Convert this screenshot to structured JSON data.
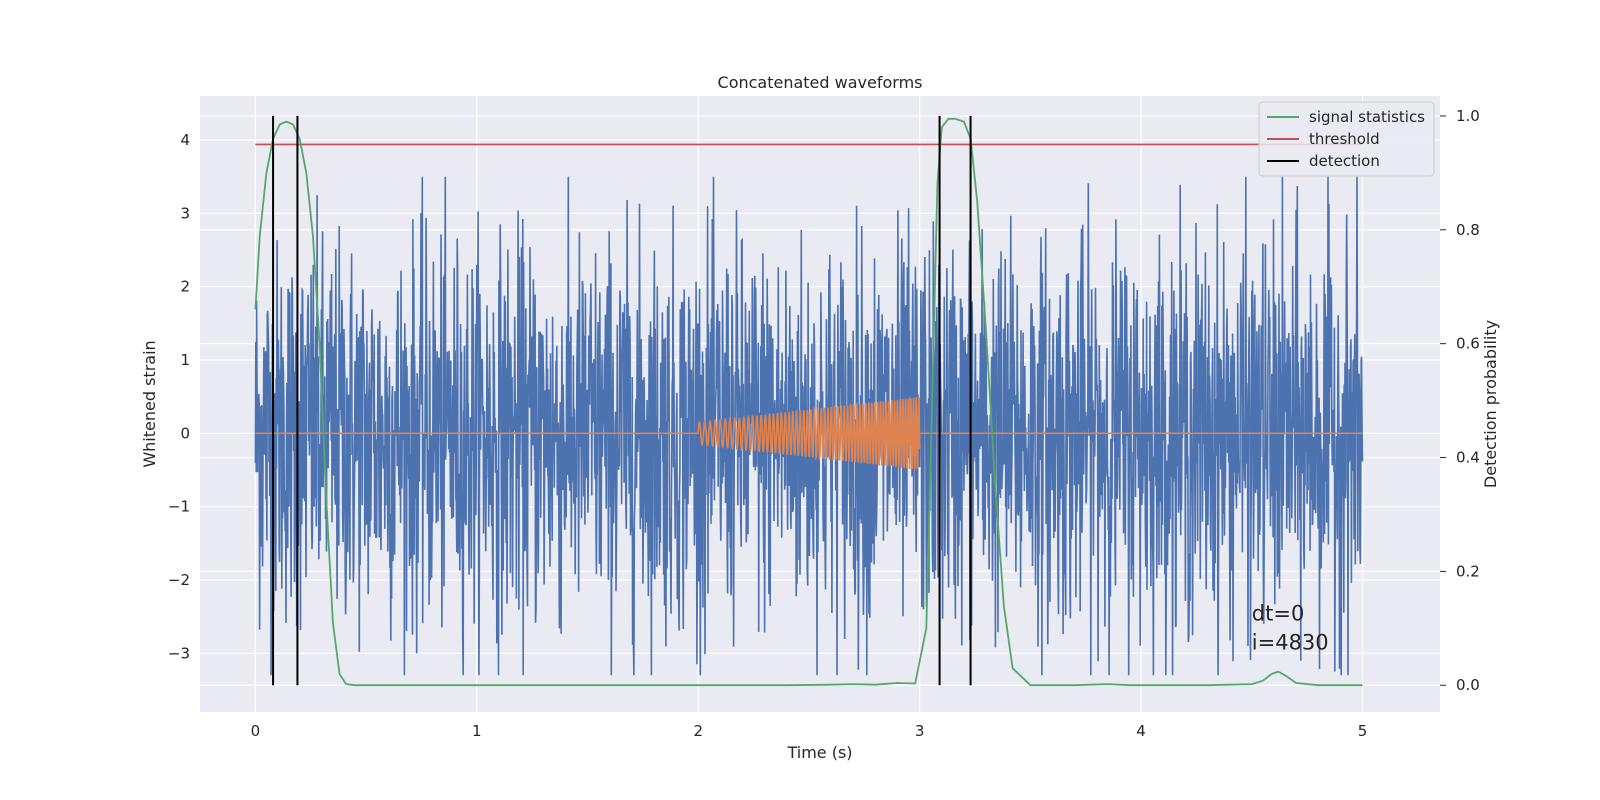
{
  "chart_data": {
    "type": "line",
    "title": "Concatenated waveforms",
    "xlabel": "Time (s)",
    "ylabel": "Whitened strain",
    "y2label": "Detection probability",
    "xlim": [
      -0.25,
      5.35
    ],
    "ylim": [
      -3.8,
      4.6
    ],
    "y2lim": [
      -0.047,
      1.035
    ],
    "x_ticks": [
      0,
      1,
      2,
      3,
      4,
      5
    ],
    "y_ticks": [
      -3,
      -2,
      -1,
      0,
      1,
      2,
      3,
      4
    ],
    "y2_ticks": [
      0.0,
      0.2,
      0.4,
      0.6,
      0.8,
      1.0
    ],
    "x_tick_labels": [
      "0",
      "1",
      "2",
      "3",
      "4",
      "5"
    ],
    "y_tick_labels": [
      "−3",
      "−2",
      "−1",
      "0",
      "1",
      "2",
      "3",
      "4"
    ],
    "y2_tick_labels": [
      "0.0",
      "0.2",
      "0.4",
      "0.6",
      "0.8",
      "1.0"
    ],
    "grid": true,
    "legend_position": "top-right",
    "colors": {
      "strain": "#4c72b0",
      "injection": "#dd8452",
      "signal": "#55a868",
      "threshold": "#c44e52",
      "detection": "#000000",
      "background": "#eaeaf2",
      "grid": "#ffffff"
    },
    "series": [
      {
        "name": "signal statistics",
        "axis": "right",
        "x": [
          0.0,
          0.02,
          0.05,
          0.08,
          0.11,
          0.14,
          0.17,
          0.2,
          0.23,
          0.26,
          0.29,
          0.32,
          0.35,
          0.38,
          0.41,
          0.45,
          0.6,
          1.0,
          1.5,
          2.0,
          2.4,
          2.6,
          2.7,
          2.8,
          2.9,
          2.98,
          3.03,
          3.06,
          3.08,
          3.1,
          3.13,
          3.16,
          3.2,
          3.23,
          3.26,
          3.3,
          3.34,
          3.38,
          3.42,
          3.5,
          3.7,
          3.85,
          3.95,
          4.1,
          4.3,
          4.5,
          4.55,
          4.59,
          4.62,
          4.66,
          4.7,
          4.8,
          5.0
        ],
        "values": [
          0.66,
          0.79,
          0.9,
          0.96,
          0.985,
          0.99,
          0.985,
          0.96,
          0.9,
          0.79,
          0.6,
          0.33,
          0.11,
          0.02,
          0.002,
          0.0,
          0.0,
          0.0,
          0.0,
          0.0,
          0.0,
          0.001,
          0.002,
          0.001,
          0.004,
          0.003,
          0.1,
          0.55,
          0.88,
          0.98,
          0.995,
          0.995,
          0.99,
          0.96,
          0.85,
          0.62,
          0.36,
          0.14,
          0.03,
          0.0,
          0.0,
          0.002,
          0.0,
          0.0,
          0.0,
          0.002,
          0.008,
          0.02,
          0.024,
          0.015,
          0.004,
          0.0,
          0.0
        ]
      },
      {
        "name": "threshold",
        "axis": "right",
        "x": [
          0.0,
          5.0
        ],
        "values": [
          0.95,
          0.95
        ]
      },
      {
        "name": "detection",
        "axis": "right",
        "vlines": [
          0.08,
          0.19,
          3.09,
          3.23
        ],
        "ymin": 0.0,
        "ymax": 1.0
      },
      {
        "axis": "left",
        "kind": "noise",
        "x_range": [
          0.0,
          5.0
        ],
        "typical_amplitude": 1.3,
        "peak_range": [
          -3.3,
          4.4
        ]
      },
      {
        "axis": "left",
        "kind": "chirp",
        "x_range": [
          2.0,
          3.0
        ],
        "start_amplitude": 0.15,
        "end_amplitude": 0.5,
        "baseline": 0
      }
    ],
    "annotations": [
      {
        "text": "dt=0",
        "x": 4.5,
        "y": -2.55
      },
      {
        "text": "i=4830",
        "x": 4.5,
        "y": -2.95
      }
    ]
  }
}
